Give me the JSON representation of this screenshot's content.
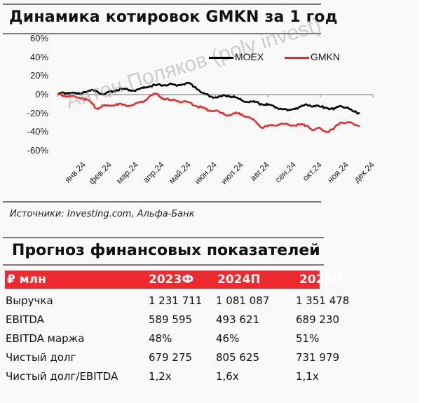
{
  "chart_section": {
    "title": "Динамика котировок GMKN за 1 год",
    "source": "Источники: Investing.com, Альфа-Банк",
    "watermark": "Антон Поляков (poly invest)"
  },
  "chart_data": {
    "type": "line",
    "title": "Динамика котировок GMKN за 1 год",
    "xlabel": "",
    "ylabel": "",
    "ylim": [
      -60,
      60
    ],
    "y_ticks": [
      "60%",
      "40%",
      "20%",
      "0%",
      "-20%",
      "-40%",
      "-60%"
    ],
    "x_ticks": [
      "янв.24",
      "фев.24",
      "мар.24",
      "апр.24",
      "май.24",
      "июн.24",
      "июл.24",
      "авг.24",
      "сен.24",
      "окт.24",
      "ноя.24",
      "дек.24"
    ],
    "legend": [
      "MOEX",
      "GMKN"
    ],
    "legend_position": "top-right",
    "grid": false,
    "colors": {
      "MOEX": "#000000",
      "GMKN": "#e03030"
    },
    "x": [
      0,
      0.25,
      0.5,
      0.75,
      1,
      1.25,
      1.5,
      1.75,
      2,
      2.25,
      2.5,
      2.75,
      3,
      3.25,
      3.5,
      3.75,
      4,
      4.25,
      4.5,
      4.75,
      5,
      5.25,
      5.5,
      5.75,
      6,
      6.25,
      6.5,
      6.75,
      7,
      7.25,
      7.5,
      7.75,
      8,
      8.25,
      8.5,
      8.75,
      9,
      9.25,
      9.5,
      9.75,
      10,
      10.25,
      10.5,
      10.75,
      11,
      11.25,
      11.5
    ],
    "series": [
      {
        "name": "MOEX",
        "values": [
          0,
          2,
          2,
          1,
          3,
          4,
          4,
          0,
          3,
          5,
          6,
          5,
          5,
          7,
          9,
          10,
          10,
          11,
          10,
          11,
          12,
          8,
          2,
          -1,
          -3,
          -2,
          -1,
          -3,
          -6,
          -8,
          -8,
          -10,
          -11,
          -13,
          -15,
          -17,
          -15,
          -13,
          -11,
          -12,
          -13,
          -14,
          -16,
          -12,
          -14,
          -18,
          -20
        ]
      },
      {
        "name": "GMKN",
        "values": [
          0,
          -1,
          -2,
          -3,
          -4,
          -8,
          -15,
          -12,
          -12,
          -10,
          -11,
          -12,
          -9,
          -8,
          -2,
          1,
          -4,
          -6,
          -6,
          -8,
          -8,
          -12,
          -14,
          -17,
          -17,
          -20,
          -22,
          -20,
          -21,
          -24,
          -28,
          -35,
          -34,
          -33,
          -31,
          -32,
          -33,
          -32,
          -33,
          -38,
          -36,
          -40,
          -37,
          -30,
          -30,
          -31,
          -34
        ]
      }
    ]
  },
  "table_section": {
    "title": "Прогноз финансовых показателей",
    "headers": [
      "₽ млн",
      "2023Ф",
      "2024П",
      "2025П"
    ],
    "rows": [
      [
        "Выручка",
        "1 231 711",
        "1 081 087",
        "1 351 478"
      ],
      [
        "EBITDA",
        "589 595",
        "493 621",
        "689 230"
      ],
      [
        "EBITDA маржа",
        "48%",
        "46%",
        "51%"
      ],
      [
        "Чистый долг",
        "679 275",
        " 805 625",
        "731 979"
      ],
      [
        "Чистый долг/EBITDA",
        "1,2x",
        "1,6x",
        "1,1x"
      ]
    ],
    "header_bg": "#ee2a2e"
  }
}
